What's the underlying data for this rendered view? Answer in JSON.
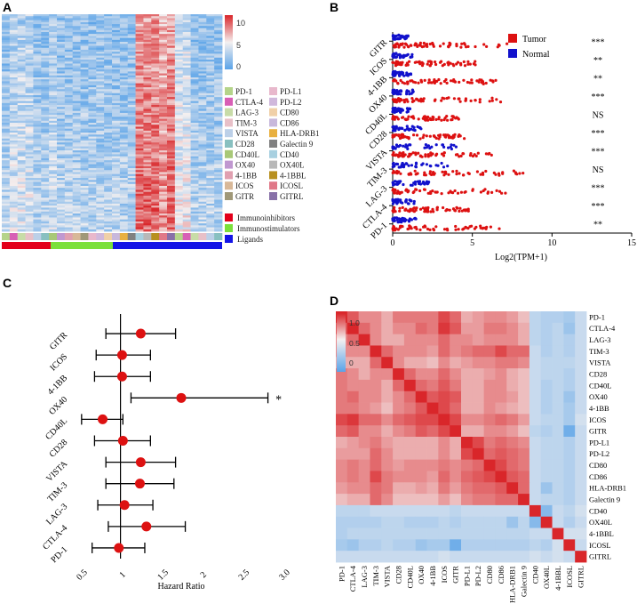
{
  "panels": {
    "a": "A",
    "b": "B",
    "c": "C",
    "d": "D"
  },
  "chart_data": [
    {
      "type": "heatmap",
      "panel": "A",
      "colorbar": {
        "ticks": [
          "10",
          "5",
          "0"
        ],
        "range": [
          0,
          12
        ]
      },
      "gene_legend": [
        {
          "name": "PD-1",
          "color": "#b5d48a"
        },
        {
          "name": "PD-L1",
          "color": "#e8b8cc"
        },
        {
          "name": "CTLA-4",
          "color": "#d85fb5"
        },
        {
          "name": "PD-L2",
          "color": "#d0b8dc"
        },
        {
          "name": "LAG-3",
          "color": "#c8dca8"
        },
        {
          "name": "CD80",
          "color": "#f0d0a8"
        },
        {
          "name": "TIM-3",
          "color": "#e8c0c8"
        },
        {
          "name": "CD86",
          "color": "#c8b8dc"
        },
        {
          "name": "VISTA",
          "color": "#bcd0e8"
        },
        {
          "name": "HLA-DRB1",
          "color": "#e8b040"
        },
        {
          "name": "CD28",
          "color": "#88c0c0"
        },
        {
          "name": "Galectin 9",
          "color": "#808080"
        },
        {
          "name": "CD40L",
          "color": "#a8c878"
        },
        {
          "name": "CD40",
          "color": "#a8d0e0"
        },
        {
          "name": "OX40",
          "color": "#c098d0"
        },
        {
          "name": "OX40L",
          "color": "#b8b8b8"
        },
        {
          "name": "4-1BB",
          "color": "#e0a0b0"
        },
        {
          "name": "4-1BBL",
          "color": "#b89020"
        },
        {
          "name": "ICOS",
          "color": "#d8b898"
        },
        {
          "name": "ICOSL",
          "color": "#e07888"
        },
        {
          "name": "GITR",
          "color": "#a09878"
        },
        {
          "name": "GITRL",
          "color": "#8870a8"
        }
      ],
      "group_legend": [
        {
          "name": "Immunoinhibitors",
          "color": "#e3001b"
        },
        {
          "name": "Immunostimulators",
          "color": "#7be03a"
        },
        {
          "name": "Ligands",
          "color": "#1414e6"
        }
      ]
    },
    {
      "type": "scatter",
      "panel": "B",
      "genes": [
        "GITR",
        "ICOS",
        "4-1BB",
        "OX40",
        "CD40L",
        "CD28",
        "VISTA",
        "TIM-3",
        "LAG-3",
        "CTLA-4",
        "PD-1"
      ],
      "significance": [
        "***",
        "**",
        "**",
        "***",
        "NS",
        "***",
        "***",
        "NS",
        "***",
        "***",
        "**"
      ],
      "tumor_max": [
        7.2,
        5.2,
        6.5,
        7.0,
        4.2,
        4.5,
        6.5,
        8.2,
        7.2,
        5.0,
        6.8
      ],
      "normal_max": [
        1.0,
        1.3,
        1.2,
        1.4,
        1.1,
        1.8,
        4.0,
        3.8,
        2.5,
        1.4,
        1.5
      ],
      "x_ticks": [
        "0",
        "5",
        "10",
        "15"
      ],
      "xlim": [
        0,
        15
      ],
      "xlabel": "Log2(TPM+1)",
      "legend": [
        {
          "name": "Tumor",
          "color": "#dd1111"
        },
        {
          "name": "Normal",
          "color": "#1111cc"
        }
      ]
    },
    {
      "type": "forest",
      "panel": "C",
      "genes": [
        "GITR",
        "ICOS",
        "4-1BB",
        "OX40",
        "CD40L",
        "CD28",
        "VISTA",
        "TIM-3",
        "LAG-3",
        "CTLA-4",
        "PD-1"
      ],
      "hr": [
        1.25,
        1.02,
        1.02,
        1.75,
        0.78,
        1.03,
        1.25,
        1.24,
        1.05,
        1.32,
        0.98
      ],
      "lower": [
        0.82,
        0.7,
        0.68,
        1.13,
        0.52,
        0.68,
        0.82,
        0.82,
        0.72,
        0.85,
        0.65
      ],
      "upper": [
        1.68,
        1.37,
        1.37,
        2.82,
        1.03,
        1.37,
        1.68,
        1.66,
        1.4,
        1.8,
        1.3
      ],
      "annotation": {
        "gene": "OX40",
        "text": "*"
      },
      "x_ticks": [
        "0.5",
        "1",
        "1.5",
        "2",
        "2.5",
        "3.0"
      ],
      "xlim": [
        0.5,
        3.0
      ],
      "xlabel": "Hazard Ratio"
    },
    {
      "type": "heatmap",
      "panel": "D",
      "labels": [
        "PD-1",
        "CTLA-4",
        "LAG-3",
        "TIM-3",
        "VISTA",
        "CD28",
        "CD40L",
        "OX40",
        "4-1BB",
        "ICOS",
        "GITR",
        "PD-L1",
        "PD-L2",
        "CD80",
        "CD86",
        "HLA-DRB1",
        "Galectin 9",
        "CD40",
        "OX40L",
        "4-1BBL",
        "ICOSL",
        "GITRL"
      ],
      "colorbar_ticks": [
        "1.0",
        "0.5",
        "0"
      ],
      "matrix": [
        [
          1.0,
          0.85,
          0.7,
          0.7,
          0.6,
          0.75,
          0.75,
          0.75,
          0.75,
          0.9,
          0.8,
          0.6,
          0.65,
          0.7,
          0.7,
          0.65,
          0.55,
          0.15,
          0.1,
          0.1,
          0.05,
          0.2
        ],
        [
          0.85,
          1.0,
          0.8,
          0.7,
          0.6,
          0.7,
          0.7,
          0.8,
          0.75,
          0.95,
          0.85,
          0.65,
          0.65,
          0.75,
          0.75,
          0.7,
          0.6,
          0.15,
          0.1,
          0.15,
          0.0,
          0.2
        ],
        [
          0.7,
          0.8,
          1.0,
          0.7,
          0.6,
          0.6,
          0.7,
          0.7,
          0.7,
          0.8,
          0.7,
          0.7,
          0.65,
          0.7,
          0.7,
          0.7,
          0.6,
          0.15,
          0.1,
          0.15,
          0.1,
          0.2
        ],
        [
          0.7,
          0.7,
          0.7,
          1.0,
          0.8,
          0.7,
          0.7,
          0.7,
          0.65,
          0.8,
          0.7,
          0.75,
          0.8,
          0.8,
          0.9,
          0.8,
          0.8,
          0.2,
          0.1,
          0.15,
          0.1,
          0.2
        ],
        [
          0.6,
          0.6,
          0.6,
          0.8,
          1.0,
          0.7,
          0.6,
          0.6,
          0.55,
          0.7,
          0.6,
          0.65,
          0.7,
          0.7,
          0.75,
          0.75,
          0.7,
          0.2,
          0.15,
          0.15,
          0.15,
          0.2
        ],
        [
          0.75,
          0.7,
          0.6,
          0.7,
          0.7,
          1.0,
          0.8,
          0.7,
          0.7,
          0.8,
          0.7,
          0.6,
          0.6,
          0.65,
          0.7,
          0.6,
          0.55,
          0.2,
          0.15,
          0.15,
          0.1,
          0.2
        ],
        [
          0.75,
          0.7,
          0.7,
          0.7,
          0.6,
          0.8,
          1.0,
          0.8,
          0.75,
          0.85,
          0.75,
          0.6,
          0.6,
          0.7,
          0.7,
          0.6,
          0.55,
          0.2,
          0.1,
          0.15,
          0.1,
          0.2
        ],
        [
          0.75,
          0.8,
          0.7,
          0.7,
          0.6,
          0.7,
          0.8,
          1.0,
          0.85,
          0.9,
          0.85,
          0.6,
          0.6,
          0.7,
          0.7,
          0.65,
          0.55,
          0.2,
          0.1,
          0.15,
          0.0,
          0.2
        ],
        [
          0.75,
          0.75,
          0.7,
          0.65,
          0.55,
          0.7,
          0.75,
          0.85,
          1.0,
          0.9,
          0.8,
          0.6,
          0.6,
          0.7,
          0.65,
          0.6,
          0.55,
          0.2,
          0.1,
          0.15,
          0.05,
          0.2
        ],
        [
          0.9,
          0.95,
          0.8,
          0.8,
          0.7,
          0.8,
          0.85,
          0.9,
          0.9,
          1.0,
          0.9,
          0.7,
          0.7,
          0.75,
          0.8,
          0.75,
          0.65,
          0.2,
          0.15,
          0.15,
          0.05,
          0.25
        ],
        [
          0.8,
          0.85,
          0.7,
          0.7,
          0.6,
          0.7,
          0.75,
          0.85,
          0.8,
          0.9,
          1.0,
          0.6,
          0.6,
          0.7,
          0.7,
          0.65,
          0.55,
          0.15,
          0.1,
          0.15,
          -0.2,
          0.2
        ],
        [
          0.6,
          0.65,
          0.7,
          0.75,
          0.65,
          0.6,
          0.6,
          0.6,
          0.6,
          0.7,
          0.6,
          1.0,
          0.9,
          0.75,
          0.8,
          0.75,
          0.7,
          0.2,
          0.15,
          0.15,
          0.1,
          0.2
        ],
        [
          0.65,
          0.65,
          0.65,
          0.8,
          0.7,
          0.6,
          0.6,
          0.6,
          0.6,
          0.7,
          0.6,
          0.9,
          1.0,
          0.8,
          0.85,
          0.8,
          0.75,
          0.2,
          0.15,
          0.15,
          0.1,
          0.2
        ],
        [
          0.7,
          0.75,
          0.7,
          0.8,
          0.7,
          0.65,
          0.7,
          0.7,
          0.7,
          0.75,
          0.7,
          0.75,
          0.8,
          1.0,
          0.9,
          0.8,
          0.75,
          0.2,
          0.15,
          0.15,
          0.1,
          0.2
        ],
        [
          0.7,
          0.75,
          0.7,
          0.9,
          0.75,
          0.7,
          0.7,
          0.7,
          0.65,
          0.8,
          0.7,
          0.8,
          0.85,
          0.9,
          1.0,
          0.85,
          0.8,
          0.2,
          0.15,
          0.15,
          0.1,
          0.2
        ],
        [
          0.65,
          0.7,
          0.7,
          0.8,
          0.75,
          0.6,
          0.6,
          0.65,
          0.6,
          0.75,
          0.65,
          0.75,
          0.8,
          0.8,
          0.85,
          1.0,
          0.8,
          0.2,
          0.0,
          0.15,
          0.1,
          0.2
        ],
        [
          0.55,
          0.6,
          0.6,
          0.8,
          0.7,
          0.55,
          0.55,
          0.55,
          0.55,
          0.65,
          0.55,
          0.7,
          0.75,
          0.75,
          0.8,
          0.8,
          1.0,
          0.2,
          0.15,
          0.15,
          0.1,
          0.2
        ],
        [
          0.15,
          0.15,
          0.15,
          0.2,
          0.2,
          0.2,
          0.2,
          0.2,
          0.2,
          0.2,
          0.15,
          0.2,
          0.2,
          0.2,
          0.2,
          0.2,
          0.2,
          1.0,
          -0.1,
          0.2,
          0.15,
          0.25
        ],
        [
          0.1,
          0.1,
          0.1,
          0.1,
          0.15,
          0.15,
          0.1,
          0.1,
          0.1,
          0.15,
          0.1,
          0.15,
          0.15,
          0.15,
          0.15,
          0.0,
          0.15,
          -0.1,
          1.0,
          0.2,
          0.1,
          0.2
        ],
        [
          0.1,
          0.15,
          0.15,
          0.15,
          0.15,
          0.15,
          0.15,
          0.15,
          0.15,
          0.15,
          0.15,
          0.15,
          0.15,
          0.15,
          0.15,
          0.15,
          0.15,
          0.2,
          0.2,
          1.0,
          0.25,
          0.25
        ],
        [
          0.05,
          0.0,
          0.1,
          0.1,
          0.15,
          0.1,
          0.1,
          0.0,
          0.05,
          0.05,
          -0.2,
          0.1,
          0.1,
          0.1,
          0.1,
          0.1,
          0.1,
          0.15,
          0.1,
          0.25,
          1.0,
          0.2
        ],
        [
          0.2,
          0.2,
          0.2,
          0.2,
          0.2,
          0.2,
          0.2,
          0.2,
          0.2,
          0.25,
          0.2,
          0.2,
          0.2,
          0.2,
          0.2,
          0.2,
          0.2,
          0.25,
          0.2,
          0.25,
          0.2,
          1.0
        ]
      ]
    }
  ]
}
